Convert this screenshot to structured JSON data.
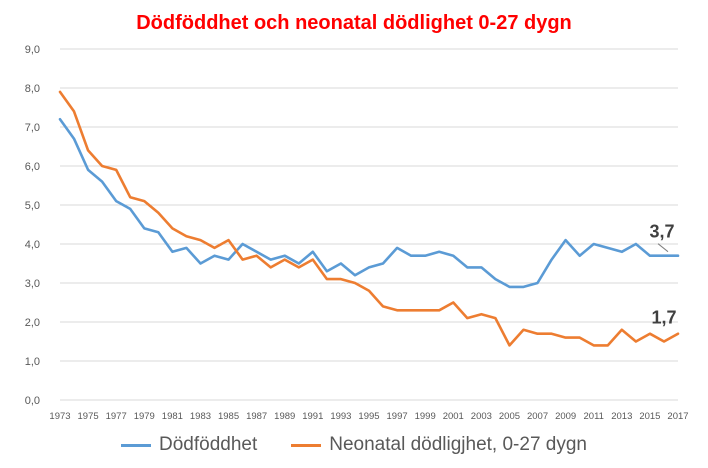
{
  "chart_data": {
    "type": "line",
    "title": "Dödföddhet och neonatal dödlighet 0-27 dygn",
    "xlabel": "",
    "ylabel": "",
    "ylim": [
      0,
      9
    ],
    "y_ticks": [
      "0,0",
      "1,0",
      "2,0",
      "3,0",
      "4,0",
      "5,0",
      "6,0",
      "7,0",
      "8,0",
      "9,0"
    ],
    "x_tick_labels": [
      "1973",
      "1975",
      "1977",
      "1979",
      "1981",
      "1983",
      "1985",
      "1987",
      "1989",
      "1991",
      "1993",
      "1995",
      "1997",
      "1999",
      "2001",
      "2003",
      "2005",
      "2007",
      "2009",
      "2011",
      "2013",
      "2015",
      "2017"
    ],
    "x": [
      1973,
      1974,
      1975,
      1976,
      1977,
      1978,
      1979,
      1980,
      1981,
      1982,
      1983,
      1984,
      1985,
      1986,
      1987,
      1988,
      1989,
      1990,
      1991,
      1992,
      1993,
      1994,
      1995,
      1996,
      1997,
      1998,
      1999,
      2000,
      2001,
      2002,
      2003,
      2004,
      2005,
      2006,
      2007,
      2008,
      2009,
      2010,
      2011,
      2012,
      2013,
      2014,
      2015,
      2016,
      2017
    ],
    "grid": "horizontal",
    "legend_position": "bottom",
    "series": [
      {
        "name": "Dödföddhet",
        "color": "#5b9bd5",
        "values": [
          7.2,
          6.7,
          5.9,
          5.6,
          5.1,
          4.9,
          4.4,
          4.3,
          3.8,
          3.9,
          3.5,
          3.7,
          3.6,
          4.0,
          3.8,
          3.6,
          3.7,
          3.5,
          3.8,
          3.3,
          3.5,
          3.2,
          3.4,
          3.5,
          3.9,
          3.7,
          3.7,
          3.8,
          3.7,
          3.4,
          3.4,
          3.1,
          2.9,
          2.9,
          3.0,
          3.6,
          4.1,
          3.7,
          4.0,
          3.9,
          3.8,
          4.0,
          3.7,
          3.7,
          3.7
        ]
      },
      {
        "name": "Neonatal dödligjhet, 0-27 dygn",
        "color": "#ed7d31",
        "values": [
          7.9,
          7.4,
          6.4,
          6.0,
          5.9,
          5.2,
          5.1,
          4.8,
          4.4,
          4.2,
          4.1,
          3.9,
          4.1,
          3.6,
          3.7,
          3.4,
          3.6,
          3.4,
          3.6,
          3.1,
          3.1,
          3.0,
          2.8,
          2.4,
          2.3,
          2.3,
          2.3,
          2.3,
          2.5,
          2.1,
          2.2,
          2.1,
          1.4,
          1.8,
          1.7,
          1.7,
          1.6,
          1.6,
          1.4,
          1.4,
          1.8,
          1.5,
          1.7,
          1.5,
          1.7
        ]
      }
    ],
    "annotations": [
      {
        "series": 0,
        "text": "3,7"
      },
      {
        "series": 1,
        "text": "1,7"
      }
    ]
  }
}
